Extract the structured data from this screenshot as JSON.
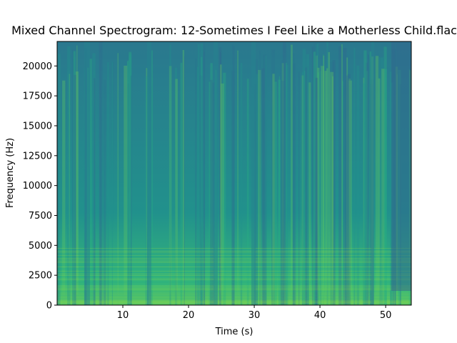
{
  "chart_data": {
    "type": "spectrogram",
    "title": "Mixed Channel Spectrogram: 12-Sometimes I Feel Like a Motherless Child.flac",
    "x_label": "Time (s)",
    "y_label": "Frequency (Hz)",
    "xlim": [
      0,
      53.9
    ],
    "xticks": [
      10,
      20,
      30,
      40,
      50
    ],
    "ylim": [
      0,
      22050
    ],
    "yticks": [
      0,
      2500,
      5000,
      7500,
      10000,
      12500,
      15000,
      17500,
      20000
    ],
    "colormap": "viridis"
  }
}
